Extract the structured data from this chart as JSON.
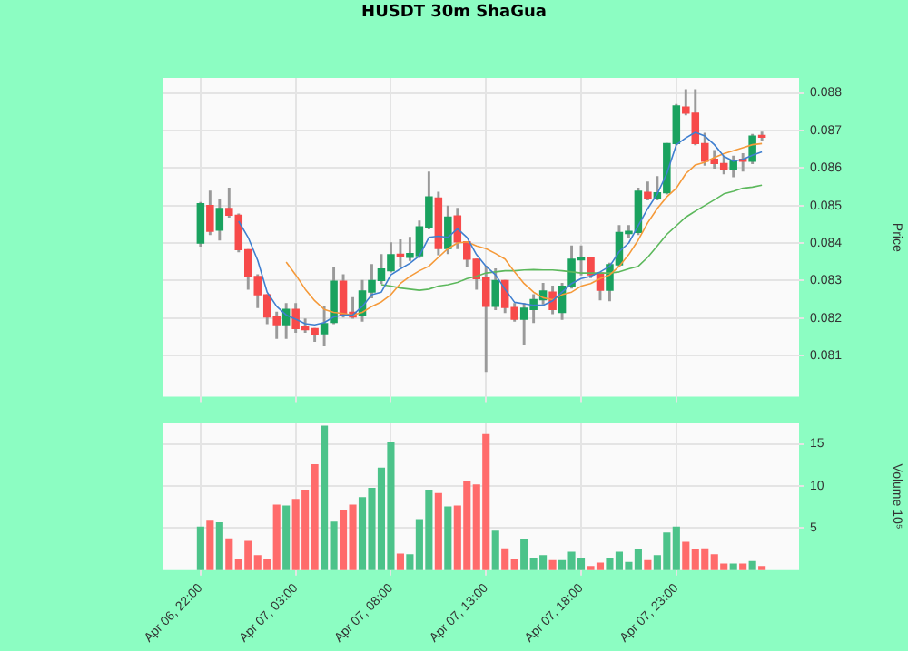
{
  "chart_data": [
    {
      "type": "candlestick",
      "title": "HUSDT 30m ShaGua",
      "ylabel": "Price",
      "tick_labels": "y",
      "grid": true,
      "ohlc": [
        [
          0.084,
          0.08508,
          0.08392,
          0.08505
        ],
        [
          0.085,
          0.08538,
          0.08423,
          0.08431
        ],
        [
          0.08434,
          0.08515,
          0.08408,
          0.08492
        ],
        [
          0.08492,
          0.08546,
          0.08469,
          0.08474
        ],
        [
          0.08474,
          0.08477,
          0.08377,
          0.08382
        ],
        [
          0.08382,
          0.08382,
          0.08277,
          0.08311
        ],
        [
          0.08311,
          0.08315,
          0.08228,
          0.08262
        ],
        [
          0.08262,
          0.08262,
          0.08185,
          0.08203
        ],
        [
          0.08203,
          0.08215,
          0.08146,
          0.08182
        ],
        [
          0.08182,
          0.08238,
          0.08146,
          0.08223
        ],
        [
          0.08223,
          0.08238,
          0.08162,
          0.08172
        ],
        [
          0.08178,
          0.08197,
          0.08162,
          0.08169
        ],
        [
          0.08172,
          0.08172,
          0.08138,
          0.08157
        ],
        [
          0.08158,
          0.08231,
          0.08126,
          0.08185
        ],
        [
          0.08188,
          0.08335,
          0.08185,
          0.08298
        ],
        [
          0.08298,
          0.08315,
          0.08203,
          0.08208
        ],
        [
          0.08215,
          0.08254,
          0.082,
          0.08203
        ],
        [
          0.08208,
          0.083,
          0.08192,
          0.08272
        ],
        [
          0.08269,
          0.08342,
          0.08254,
          0.083
        ],
        [
          0.083,
          0.08369,
          0.08292,
          0.08331
        ],
        [
          0.08326,
          0.084,
          0.08323,
          0.08369
        ],
        [
          0.08369,
          0.08408,
          0.08338,
          0.08365
        ],
        [
          0.08362,
          0.08415,
          0.08354,
          0.08372
        ],
        [
          0.08366,
          0.08458,
          0.08362,
          0.08443
        ],
        [
          0.08442,
          0.08589,
          0.08438,
          0.08523
        ],
        [
          0.0852,
          0.08535,
          0.08369,
          0.08385
        ],
        [
          0.08385,
          0.08498,
          0.08372,
          0.08469
        ],
        [
          0.08472,
          0.08492,
          0.08385,
          0.08403
        ],
        [
          0.08403,
          0.08403,
          0.08338,
          0.08357
        ],
        [
          0.08357,
          0.08357,
          0.08277,
          0.08305
        ],
        [
          0.08308,
          0.08338,
          0.08058,
          0.08231
        ],
        [
          0.08231,
          0.08331,
          0.08223,
          0.083
        ],
        [
          0.083,
          0.083,
          0.08215,
          0.08228
        ],
        [
          0.08228,
          0.08238,
          0.08192,
          0.08197
        ],
        [
          0.08197,
          0.08238,
          0.08131,
          0.08226
        ],
        [
          0.08223,
          0.08262,
          0.08188,
          0.08249
        ],
        [
          0.08249,
          0.08292,
          0.08238,
          0.08272
        ],
        [
          0.08269,
          0.08285,
          0.08212,
          0.08223
        ],
        [
          0.08215,
          0.08292,
          0.08197,
          0.08285
        ],
        [
          0.08285,
          0.08392,
          0.0828,
          0.08357
        ],
        [
          0.08355,
          0.08392,
          0.08315,
          0.0836
        ],
        [
          0.08362,
          0.08362,
          0.08308,
          0.08315
        ],
        [
          0.0832,
          0.0832,
          0.08249,
          0.08274
        ],
        [
          0.08274,
          0.08346,
          0.08246,
          0.08342
        ],
        [
          0.08342,
          0.08446,
          0.08338,
          0.08428
        ],
        [
          0.08425,
          0.08446,
          0.08415,
          0.08431
        ],
        [
          0.08428,
          0.08546,
          0.08423,
          0.08538
        ],
        [
          0.08535,
          0.08562,
          0.08515,
          0.0852
        ],
        [
          0.0852,
          0.08577,
          0.08515,
          0.08534
        ],
        [
          0.08534,
          0.08665,
          0.08531,
          0.08665
        ],
        [
          0.08665,
          0.08769,
          0.08662,
          0.08765
        ],
        [
          0.08762,
          0.08808,
          0.08742,
          0.08746
        ],
        [
          0.08746,
          0.08808,
          0.08662,
          0.08665
        ],
        [
          0.08665,
          0.08692,
          0.08608,
          0.08618
        ],
        [
          0.08623,
          0.08646,
          0.086,
          0.08612
        ],
        [
          0.08612,
          0.08631,
          0.08585,
          0.08597
        ],
        [
          0.08597,
          0.08631,
          0.08577,
          0.0862
        ],
        [
          0.08623,
          0.08638,
          0.08592,
          0.08618
        ],
        [
          0.08618,
          0.08689,
          0.08612,
          0.08685
        ],
        [
          0.08685,
          0.08695,
          0.08674,
          0.08682
        ]
      ],
      "colors": [
        "#1aa25f",
        "#f74a4a",
        "#1aa25f",
        "#f74a4a",
        "#f74a4a",
        "#f74a4a",
        "#f74a4a",
        "#f74a4a",
        "#f74a4a",
        "#1aa25f",
        "#f74a4a",
        "#f74a4a",
        "#f74a4a",
        "#1aa25f",
        "#1aa25f",
        "#f74a4a",
        "#f74a4a",
        "#1aa25f",
        "#1aa25f",
        "#1aa25f",
        "#1aa25f",
        "#f74a4a",
        "#1aa25f",
        "#1aa25f",
        "#1aa25f",
        "#f74a4a",
        "#1aa25f",
        "#f74a4a",
        "#f74a4a",
        "#f74a4a",
        "#f74a4a",
        "#1aa25f",
        "#f74a4a",
        "#f74a4a",
        "#1aa25f",
        "#1aa25f",
        "#1aa25f",
        "#f74a4a",
        "#1aa25f",
        "#1aa25f",
        "#1aa25f",
        "#f74a4a",
        "#f74a4a",
        "#1aa25f",
        "#1aa25f",
        "#1aa25f",
        "#1aa25f",
        "#f74a4a",
        "#1aa25f",
        "#1aa25f",
        "#1aa25f",
        "#f74a4a",
        "#f74a4a",
        "#f74a4a",
        "#f74a4a",
        "#f74a4a",
        "#1aa25f",
        "#f74a4a",
        "#1aa25f",
        "#f74a4a"
      ],
      "series": [
        {
          "type": "line",
          "color": "#3f7fd0",
          "values": [
            null,
            null,
            null,
            null,
            0.08458,
            0.08415,
            0.08354,
            0.08269,
            0.08231,
            0.08208,
            0.08197,
            0.08185,
            0.08182,
            0.08188,
            0.08203,
            0.08208,
            0.08208,
            0.08231,
            0.08262,
            0.08269,
            0.08315,
            0.08331,
            0.08346,
            0.08366,
            0.08415,
            0.08418,
            0.08415,
            0.08438,
            0.08415,
            0.08369,
            0.08338,
            0.08315,
            0.08277,
            0.08242,
            0.08238,
            0.08234,
            0.08234,
            0.08246,
            0.08269,
            0.08292,
            0.08305,
            0.08311,
            0.08323,
            0.08338,
            0.08377,
            0.084,
            0.08446,
            0.08492,
            0.08531,
            0.08585,
            0.08662,
            0.0868,
            0.08695,
            0.08685,
            0.08662,
            0.08631,
            0.08618,
            0.08623,
            0.08634,
            0.08643
          ]
        },
        {
          "type": "line",
          "color": "#f59a3a",
          "values": [
            null,
            null,
            null,
            null,
            null,
            null,
            null,
            null,
            null,
            0.08349,
            0.08315,
            0.08277,
            0.08246,
            0.08223,
            0.08215,
            0.08212,
            0.08208,
            0.08215,
            0.08231,
            0.08243,
            0.08262,
            0.08292,
            0.08311,
            0.08326,
            0.08338,
            0.08362,
            0.08385,
            0.084,
            0.08403,
            0.08392,
            0.08385,
            0.08372,
            0.08357,
            0.08323,
            0.08292,
            0.08269,
            0.08254,
            0.08249,
            0.08262,
            0.08269,
            0.08285,
            0.08292,
            0.08305,
            0.08315,
            0.08338,
            0.08369,
            0.08408,
            0.08454,
            0.08492,
            0.08523,
            0.08546,
            0.08585,
            0.08608,
            0.08615,
            0.08628,
            0.08638,
            0.08646,
            0.08654,
            0.08662,
            0.08665
          ]
        },
        {
          "type": "line",
          "color": "#5cb85c",
          "values": [
            null,
            null,
            null,
            null,
            null,
            null,
            null,
            null,
            null,
            null,
            null,
            null,
            null,
            null,
            null,
            null,
            null,
            null,
            null,
            0.08289,
            0.08285,
            0.0828,
            0.08277,
            0.08274,
            0.08277,
            0.08285,
            0.08289,
            0.08295,
            0.08305,
            0.08311,
            0.0832,
            0.08323,
            0.08326,
            0.08326,
            0.08328,
            0.08329,
            0.08328,
            0.08328,
            0.08326,
            0.08323,
            0.0832,
            0.0832,
            0.0832,
            0.0832,
            0.08323,
            0.08331,
            0.08338,
            0.08362,
            0.08392,
            0.08423,
            0.08446,
            0.08469,
            0.08485,
            0.085,
            0.08515,
            0.08531,
            0.08538,
            0.08546,
            0.08549,
            0.08554
          ]
        }
      ],
      "ylim": [
        0.0799,
        0.0884
      ],
      "yticks": [
        0.081,
        0.082,
        0.083,
        0.084,
        0.085,
        0.086,
        0.087,
        0.088
      ]
    },
    {
      "type": "bar",
      "ylabel": "Volume 10⁵",
      "grid": true,
      "categories": [
        "Apr 06, 22:00",
        null,
        null,
        null,
        null,
        null,
        null,
        null,
        null,
        null,
        "Apr 07, 03:00",
        null,
        null,
        null,
        null,
        null,
        null,
        null,
        null,
        null,
        "Apr 07, 08:00",
        null,
        null,
        null,
        null,
        null,
        null,
        null,
        null,
        null,
        "Apr 07, 13:00",
        null,
        null,
        null,
        null,
        null,
        null,
        null,
        null,
        null,
        "Apr 07, 18:00",
        null,
        null,
        null,
        null,
        null,
        null,
        null,
        null,
        null,
        "Apr 07, 23:00",
        null,
        null,
        null,
        null,
        null,
        null,
        null,
        null,
        null
      ],
      "values": [
        5.1,
        5.8,
        5.6,
        3.7,
        1.2,
        3.4,
        1.7,
        1.2,
        7.7,
        7.6,
        8.4,
        9.5,
        12.5,
        17.1,
        5.7,
        7.1,
        7.7,
        8.6,
        9.7,
        12.1,
        15.1,
        1.9,
        1.8,
        6.0,
        9.5,
        9.1,
        7.5,
        7.6,
        10.5,
        10.1,
        16.1,
        4.6,
        2.5,
        1.2,
        3.6,
        1.4,
        1.7,
        1.1,
        1.1,
        2.1,
        1.4,
        0.4,
        0.8,
        1.4,
        2.1,
        0.9,
        2.4,
        1.1,
        1.7,
        4.4,
        5.1,
        3.3,
        2.4,
        2.5,
        1.8,
        0.7,
        0.7,
        0.7,
        1.0,
        0.4
      ],
      "colors": [
        "#4cc38a",
        "#ff6b6b",
        "#4cc38a",
        "#ff6b6b",
        "#ff6b6b",
        "#ff6b6b",
        "#ff6b6b",
        "#ff6b6b",
        "#ff6b6b",
        "#4cc38a",
        "#ff6b6b",
        "#ff6b6b",
        "#ff6b6b",
        "#4cc38a",
        "#4cc38a",
        "#ff6b6b",
        "#ff6b6b",
        "#4cc38a",
        "#4cc38a",
        "#4cc38a",
        "#4cc38a",
        "#ff6b6b",
        "#4cc38a",
        "#4cc38a",
        "#4cc38a",
        "#ff6b6b",
        "#4cc38a",
        "#ff6b6b",
        "#ff6b6b",
        "#ff6b6b",
        "#ff6b6b",
        "#4cc38a",
        "#ff6b6b",
        "#ff6b6b",
        "#4cc38a",
        "#4cc38a",
        "#4cc38a",
        "#ff6b6b",
        "#4cc38a",
        "#4cc38a",
        "#4cc38a",
        "#ff6b6b",
        "#ff6b6b",
        "#4cc38a",
        "#4cc38a",
        "#4cc38a",
        "#4cc38a",
        "#ff6b6b",
        "#4cc38a",
        "#4cc38a",
        "#4cc38a",
        "#ff6b6b",
        "#ff6b6b",
        "#ff6b6b",
        "#ff6b6b",
        "#ff6b6b",
        "#4cc38a",
        "#ff6b6b",
        "#4cc38a",
        "#ff6b6b"
      ],
      "ylim": [
        0,
        17.5
      ],
      "yticks": [
        5,
        10,
        15
      ]
    }
  ]
}
